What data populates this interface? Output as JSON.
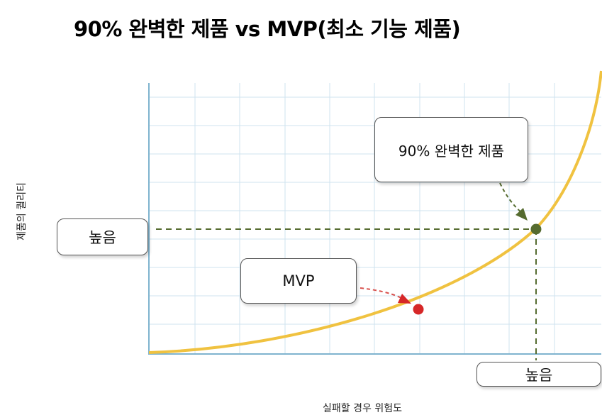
{
  "title": "90% 완벽한 제품 vs MVP(최소 기능 제품)",
  "labels": {
    "high_quality": "높음",
    "high_risk": "높음",
    "perfect_product": "90% 완벽한 제품",
    "mvp": "MVP",
    "y_axis": "제품의 퀄리티",
    "x_axis": "실패할 경우 위험도"
  },
  "colors": {
    "curve": "#f0c240",
    "grid": "#cfe3ef",
    "axis": "#7fb4cf",
    "perfect_point": "#556b2f",
    "mvp_point": "#d62728",
    "perfect_arrow": "#556b2f",
    "mvp_arrow": "#d9534f"
  },
  "icons": {
    "perfect_point": "green-dot",
    "mvp_point": "red-dot"
  }
}
